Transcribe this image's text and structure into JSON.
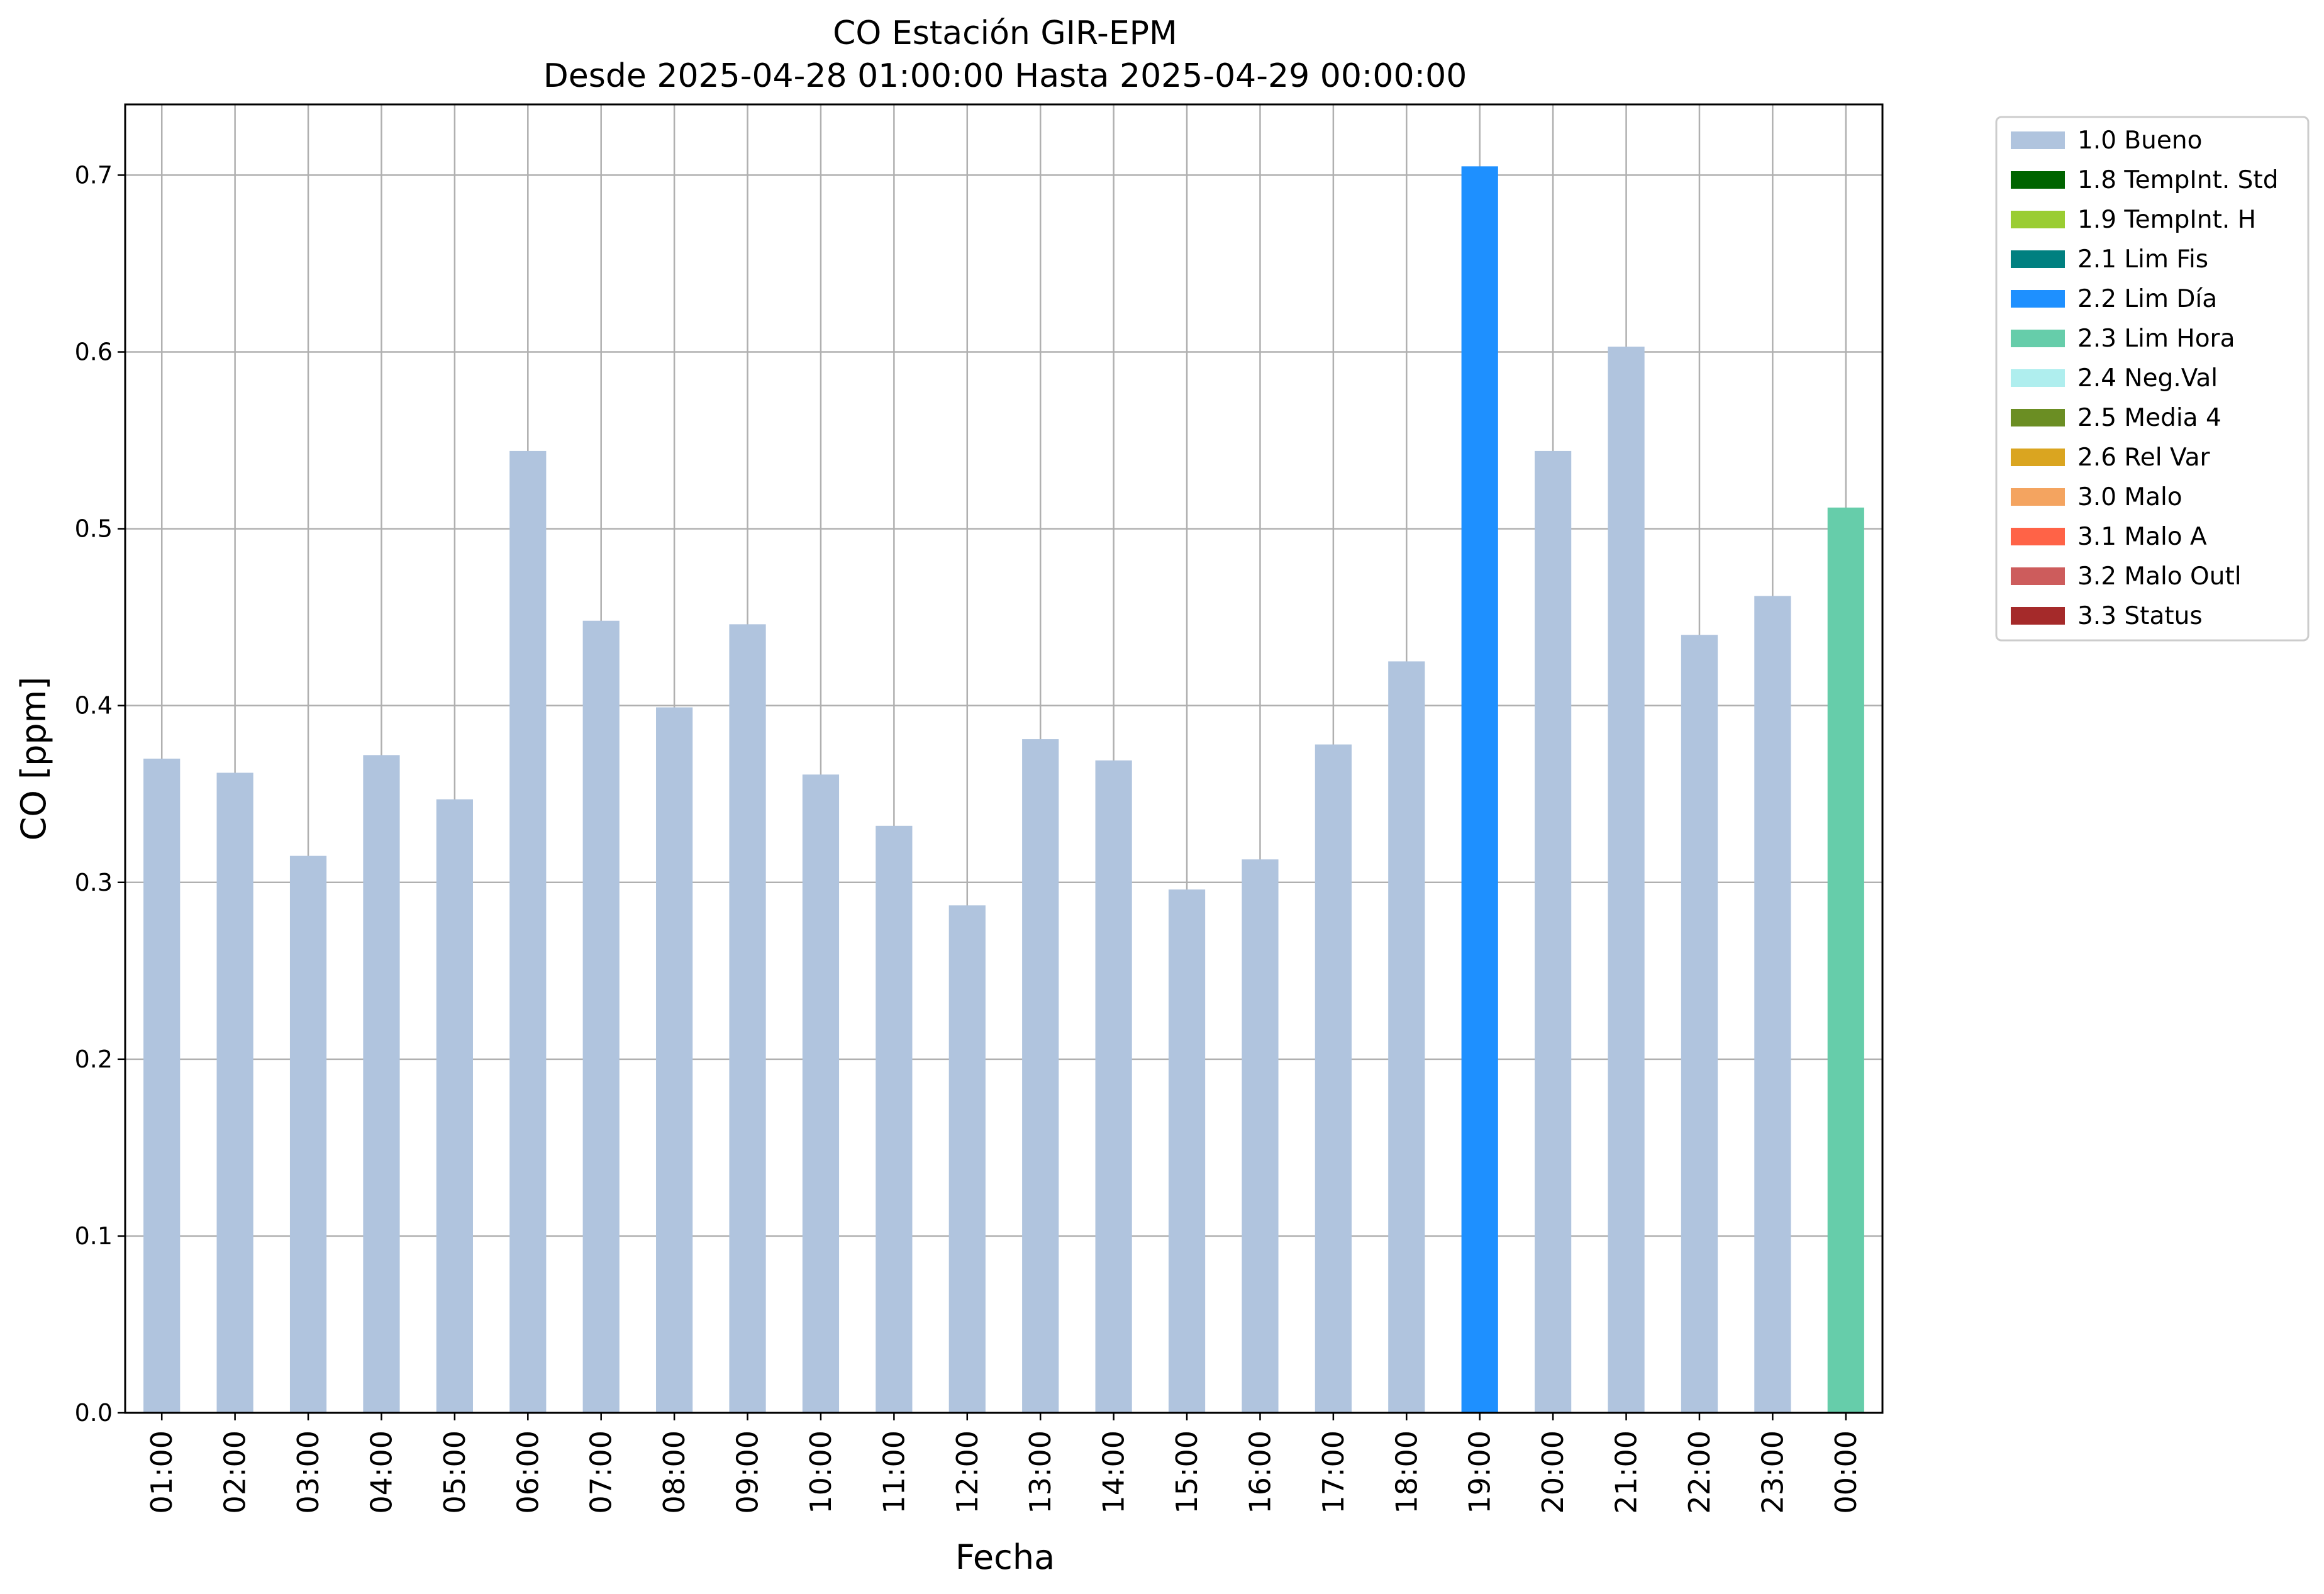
{
  "chart_data": {
    "type": "bar",
    "title": "CO Estación GIR-EPM",
    "subtitle": "Desde 2025-04-28 01:00:00 Hasta 2025-04-29 00:00:00",
    "xlabel": "Fecha",
    "ylabel": "CO [ppm]",
    "ylim": [
      0,
      0.74
    ],
    "yticks": [
      "0.0",
      "0.1",
      "0.2",
      "0.3",
      "0.4",
      "0.5",
      "0.6",
      "0.7"
    ],
    "grid": true,
    "legend_position": "outside-top-right",
    "categories": [
      "01:00",
      "02:00",
      "03:00",
      "04:00",
      "05:00",
      "06:00",
      "07:00",
      "08:00",
      "09:00",
      "10:00",
      "11:00",
      "12:00",
      "13:00",
      "14:00",
      "15:00",
      "16:00",
      "17:00",
      "18:00",
      "19:00",
      "20:00",
      "21:00",
      "22:00",
      "23:00",
      "00:00"
    ],
    "values": [
      0.37,
      0.362,
      0.315,
      0.372,
      0.347,
      0.544,
      0.448,
      0.399,
      0.446,
      0.361,
      0.332,
      0.287,
      0.381,
      0.369,
      0.296,
      0.313,
      0.378,
      0.425,
      0.705,
      0.544,
      0.603,
      0.44,
      0.462,
      0.512
    ],
    "flags": [
      "1.0 Bueno",
      "1.0 Bueno",
      "1.0 Bueno",
      "1.0 Bueno",
      "1.0 Bueno",
      "1.0 Bueno",
      "1.0 Bueno",
      "1.0 Bueno",
      "1.0 Bueno",
      "1.0 Bueno",
      "1.0 Bueno",
      "1.0 Bueno",
      "1.0 Bueno",
      "1.0 Bueno",
      "1.0 Bueno",
      "1.0 Bueno",
      "1.0 Bueno",
      "1.0 Bueno",
      "2.2 Lim Día",
      "1.0 Bueno",
      "1.0 Bueno",
      "1.0 Bueno",
      "1.0 Bueno",
      "2.3 Lim Hora"
    ],
    "legend": [
      {
        "label": "1.0 Bueno",
        "color": "#b0c4de"
      },
      {
        "label": "1.8 TempInt. Std",
        "color": "#006400"
      },
      {
        "label": "1.9 TempInt. H",
        "color": "#9acd32"
      },
      {
        "label": "2.1 Lim Fis",
        "color": "#008080"
      },
      {
        "label": "2.2 Lim Día",
        "color": "#1e90ff"
      },
      {
        "label": "2.3 Lim Hora",
        "color": "#66cdaa"
      },
      {
        "label": "2.4 Neg.Val",
        "color": "#afeeee"
      },
      {
        "label": "2.5 Media 4",
        "color": "#6b8e23"
      },
      {
        "label": "2.6 Rel Var",
        "color": "#daa520"
      },
      {
        "label": "3.0 Malo",
        "color": "#f4a460"
      },
      {
        "label": "3.1 Malo A",
        "color": "#ff6347"
      },
      {
        "label": "3.2 Malo Outl",
        "color": "#cd5c5c"
      },
      {
        "label": "3.3 Status",
        "color": "#a52a2a"
      }
    ]
  }
}
